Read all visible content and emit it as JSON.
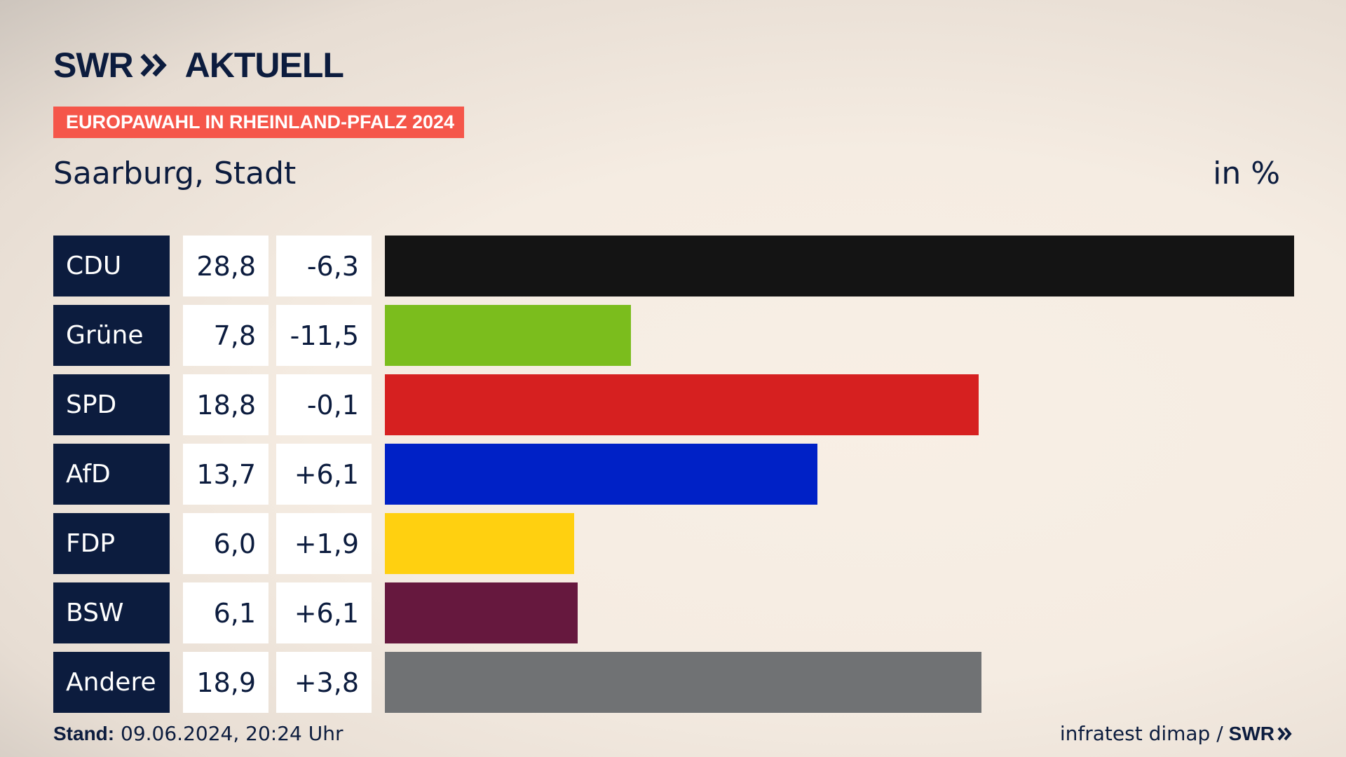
{
  "header": {
    "logo_text": "SWR",
    "logo_suffix": "AKTUELL",
    "topic": "EUROPAWAHL IN RHEINLAND-PFALZ 2024",
    "region": "Saarburg, Stadt",
    "unit": "in %"
  },
  "footer": {
    "stand_label": "Stand:",
    "stand_value": "09.06.2024, 20:24 Uhr",
    "source": "infratest dimap /",
    "source_logo": "SWR"
  },
  "chart_data": {
    "type": "bar",
    "orientation": "horizontal",
    "categories": [
      "CDU",
      "Grüne",
      "SPD",
      "AfD",
      "FDP",
      "BSW",
      "Andere"
    ],
    "values": [
      28.8,
      7.8,
      18.8,
      13.7,
      6.0,
      6.1,
      18.9
    ],
    "value_labels": [
      "28,8",
      "7,8",
      "18,8",
      "13,7",
      "6,0",
      "6,1",
      "18,9"
    ],
    "diff_labels": [
      "-6,3",
      "-11,5",
      "-0,1",
      "+6,1",
      "+1,9",
      "+6,1",
      "+3,8"
    ],
    "diffs": [
      -6.3,
      -11.5,
      -0.1,
      6.1,
      1.9,
      6.1,
      3.8
    ],
    "colors": [
      "#141414",
      "#7bbd1d",
      "#d62020",
      "#0021c6",
      "#ffd010",
      "#66183e",
      "#707274"
    ],
    "xlim": [
      0,
      28.8
    ]
  }
}
